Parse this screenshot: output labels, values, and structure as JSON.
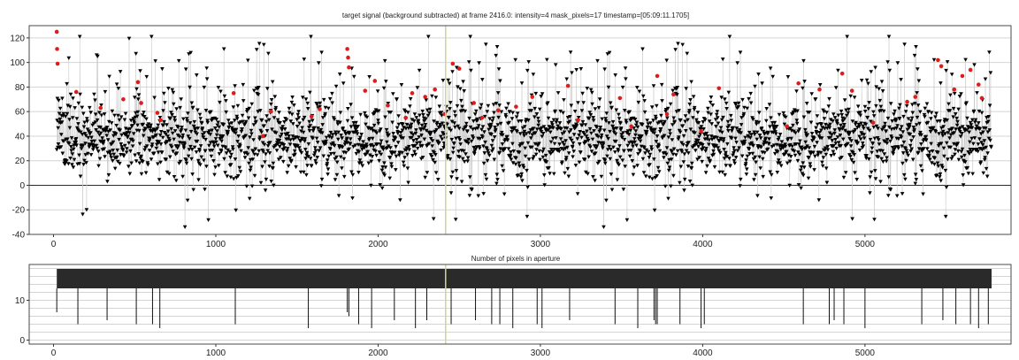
{
  "chart_data": [
    {
      "type": "scatter",
      "title": "target signal (background subtracted) at frame 2416.0: intensity=4 mask_pixels=17 timestamp=[05:09:11.1705]",
      "xlabel": "",
      "ylabel": "",
      "xlim": [
        -150,
        5900
      ],
      "ylim": [
        -40,
        130
      ],
      "x_ticks": [
        0,
        1000,
        2000,
        3000,
        4000,
        5000
      ],
      "y_ticks": [
        -40,
        -20,
        0,
        20,
        40,
        60,
        80,
        100,
        120
      ],
      "grid": true,
      "n_frames": 5780,
      "cursor_frame": 2416,
      "series": [
        {
          "marker": "down-triangle",
          "color": "#000000",
          "description_range": [
            -35,
            122
          ]
        },
        {
          "marker": "dot",
          "color": "#e01b1b"
        }
      ],
      "highlight_points": [
        {
          "x": 20,
          "y": 125
        },
        {
          "x": 22,
          "y": 111
        },
        {
          "x": 25,
          "y": 99
        },
        {
          "x": 140,
          "y": 76
        },
        {
          "x": 290,
          "y": 63
        },
        {
          "x": 430,
          "y": 70
        },
        {
          "x": 520,
          "y": 84
        },
        {
          "x": 540,
          "y": 67
        },
        {
          "x": 640,
          "y": 59
        },
        {
          "x": 660,
          "y": 53
        },
        {
          "x": 1110,
          "y": 75
        },
        {
          "x": 1290,
          "y": 40
        },
        {
          "x": 1340,
          "y": 60
        },
        {
          "x": 1590,
          "y": 56
        },
        {
          "x": 1640,
          "y": 62
        },
        {
          "x": 1810,
          "y": 111
        },
        {
          "x": 1815,
          "y": 104
        },
        {
          "x": 1820,
          "y": 96
        },
        {
          "x": 1920,
          "y": 77
        },
        {
          "x": 1980,
          "y": 85
        },
        {
          "x": 2060,
          "y": 65
        },
        {
          "x": 2170,
          "y": 55
        },
        {
          "x": 2210,
          "y": 75
        },
        {
          "x": 2290,
          "y": 72
        },
        {
          "x": 2350,
          "y": 78
        },
        {
          "x": 2410,
          "y": 58
        },
        {
          "x": 2460,
          "y": 99
        },
        {
          "x": 2500,
          "y": 95
        },
        {
          "x": 2590,
          "y": 67
        },
        {
          "x": 2640,
          "y": 55
        },
        {
          "x": 2740,
          "y": 61
        },
        {
          "x": 2850,
          "y": 64
        },
        {
          "x": 2950,
          "y": 72
        },
        {
          "x": 3170,
          "y": 81
        },
        {
          "x": 3230,
          "y": 53
        },
        {
          "x": 3490,
          "y": 71
        },
        {
          "x": 3560,
          "y": 48
        },
        {
          "x": 3720,
          "y": 89
        },
        {
          "x": 3780,
          "y": 58
        },
        {
          "x": 3820,
          "y": 74
        },
        {
          "x": 3990,
          "y": 44
        },
        {
          "x": 4100,
          "y": 79
        },
        {
          "x": 4520,
          "y": 48
        },
        {
          "x": 4590,
          "y": 83
        },
        {
          "x": 4720,
          "y": 78
        },
        {
          "x": 4860,
          "y": 91
        },
        {
          "x": 4920,
          "y": 77
        },
        {
          "x": 5050,
          "y": 51
        },
        {
          "x": 5260,
          "y": 68
        },
        {
          "x": 5310,
          "y": 72
        },
        {
          "x": 5450,
          "y": 102
        },
        {
          "x": 5470,
          "y": 97
        },
        {
          "x": 5550,
          "y": 78
        },
        {
          "x": 5600,
          "y": 89
        },
        {
          "x": 5650,
          "y": 94
        },
        {
          "x": 5700,
          "y": 82
        },
        {
          "x": 5720,
          "y": 71
        }
      ]
    },
    {
      "type": "line",
      "title": "Number of pixels in aperture",
      "xlabel": "",
      "ylabel": "",
      "xlim": [
        -150,
        5900
      ],
      "ylim": [
        -1,
        19
      ],
      "x_ticks": [
        0,
        1000,
        2000,
        3000,
        4000,
        5000
      ],
      "y_ticks": [
        0,
        10
      ],
      "grid": true,
      "baseline_value": 17,
      "series_start": 20,
      "series_end": 5780,
      "dips": [
        {
          "x": 20,
          "y": 7
        },
        {
          "x": 150,
          "y": 4
        },
        {
          "x": 330,
          "y": 5
        },
        {
          "x": 510,
          "y": 4
        },
        {
          "x": 610,
          "y": 4
        },
        {
          "x": 655,
          "y": 3
        },
        {
          "x": 1120,
          "y": 4
        },
        {
          "x": 1570,
          "y": 3
        },
        {
          "x": 1810,
          "y": 7
        },
        {
          "x": 1820,
          "y": 6
        },
        {
          "x": 1880,
          "y": 4
        },
        {
          "x": 1960,
          "y": 3
        },
        {
          "x": 2100,
          "y": 5
        },
        {
          "x": 2230,
          "y": 3
        },
        {
          "x": 2300,
          "y": 5
        },
        {
          "x": 2450,
          "y": 4
        },
        {
          "x": 2600,
          "y": 5
        },
        {
          "x": 2700,
          "y": 4
        },
        {
          "x": 2750,
          "y": 4
        },
        {
          "x": 2830,
          "y": 3
        },
        {
          "x": 2980,
          "y": 4
        },
        {
          "x": 3010,
          "y": 3
        },
        {
          "x": 3180,
          "y": 5
        },
        {
          "x": 3460,
          "y": 4
        },
        {
          "x": 3600,
          "y": 3
        },
        {
          "x": 3700,
          "y": 5
        },
        {
          "x": 3710,
          "y": 4
        },
        {
          "x": 3720,
          "y": 4
        },
        {
          "x": 3860,
          "y": 4
        },
        {
          "x": 3990,
          "y": 3
        },
        {
          "x": 4010,
          "y": 4
        },
        {
          "x": 4620,
          "y": 4
        },
        {
          "x": 4780,
          "y": 4
        },
        {
          "x": 4810,
          "y": 5
        },
        {
          "x": 4870,
          "y": 4
        },
        {
          "x": 5000,
          "y": 3
        },
        {
          "x": 5350,
          "y": 4
        },
        {
          "x": 5480,
          "y": 5
        },
        {
          "x": 5560,
          "y": 4
        },
        {
          "x": 5650,
          "y": 4
        },
        {
          "x": 5700,
          "y": 3
        },
        {
          "x": 5760,
          "y": 4
        }
      ]
    }
  ]
}
